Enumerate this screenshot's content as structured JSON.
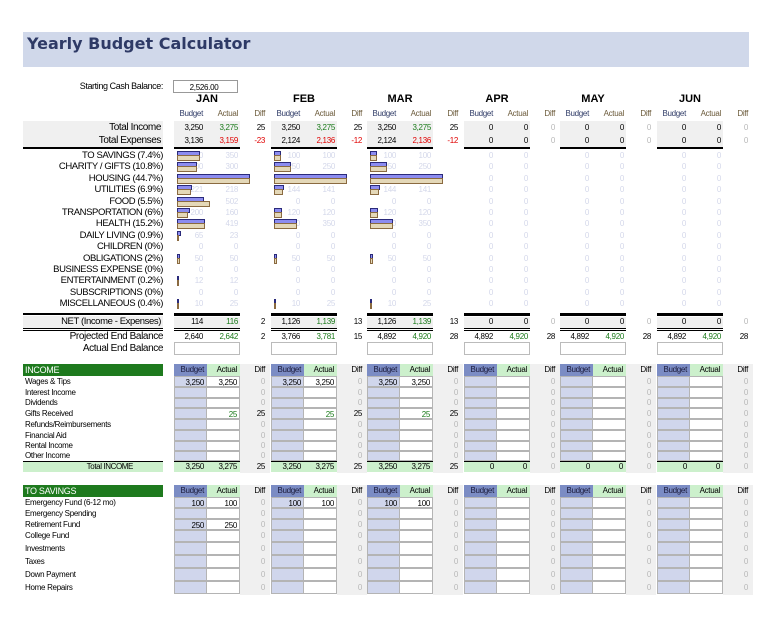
{
  "title": "Yearly Budget Calculator",
  "starting_cash": {
    "label": "Starting Cash Balance:",
    "value": "2,526.00"
  },
  "months": [
    "JAN",
    "FEB",
    "MAR",
    "APR",
    "MAY",
    "JUN"
  ],
  "col_headers": {
    "budget": "Budget",
    "actual": "Actual",
    "diff": "Diff"
  },
  "summary": {
    "total_income": {
      "label": "Total Income",
      "rows": [
        [
          "3,250",
          "3,275",
          "25"
        ],
        [
          "3,250",
          "3,275",
          "25"
        ],
        [
          "3,250",
          "3,275",
          "25"
        ],
        [
          "0",
          "0",
          "0"
        ],
        [
          "0",
          "0",
          "0"
        ],
        [
          "0",
          "0",
          "0"
        ]
      ]
    },
    "total_expenses": {
      "label": "Total Expenses",
      "rows": [
        [
          "3,136",
          "3,159",
          "-23"
        ],
        [
          "2,124",
          "2,136",
          "-12"
        ],
        [
          "2,124",
          "2,136",
          "-12"
        ],
        [
          "0",
          "0",
          "0"
        ],
        [
          "0",
          "0",
          "0"
        ],
        [
          "0",
          "0",
          "0"
        ]
      ]
    }
  },
  "categories": [
    {
      "label": "TO SAVINGS (7.4%)",
      "values": [
        [
          350,
          350
        ],
        [
          100,
          100
        ],
        [
          100,
          100
        ],
        [
          0,
          0
        ],
        [
          0,
          0
        ],
        [
          0,
          0
        ]
      ]
    },
    {
      "label": "CHARITY / GIFTS (10.8%)",
      "values": [
        [
          300,
          300
        ],
        [
          250,
          250
        ],
        [
          250,
          250
        ],
        [
          0,
          0
        ],
        [
          0,
          0
        ],
        [
          0,
          0
        ]
      ]
    },
    {
      "label": "HOUSING (44.7%)",
      "values": [
        [
          1100,
          1100
        ],
        [
          1100,
          1100
        ],
        [
          1100,
          1100
        ],
        [
          0,
          0
        ],
        [
          0,
          0
        ],
        [
          0,
          0
        ]
      ]
    },
    {
      "label": "UTILITIES (6.9%)",
      "values": [
        [
          221,
          218
        ],
        [
          144,
          141
        ],
        [
          144,
          141
        ],
        [
          0,
          0
        ],
        [
          0,
          0
        ],
        [
          0,
          0
        ]
      ]
    },
    {
      "label": "FOOD (5.5%)",
      "values": [
        [
          409,
          502
        ],
        [
          0,
          0
        ],
        [
          0,
          0
        ],
        [
          0,
          0
        ],
        [
          0,
          0
        ],
        [
          0,
          0
        ]
      ]
    },
    {
      "label": "TRANSPORTATION (6%)",
      "values": [
        [
          200,
          160
        ],
        [
          120,
          120
        ],
        [
          120,
          120
        ],
        [
          0,
          0
        ],
        [
          0,
          0
        ],
        [
          0,
          0
        ]
      ]
    },
    {
      "label": "HEALTH (15.2%)",
      "values": [
        [
          419,
          419
        ],
        [
          350,
          350
        ],
        [
          350,
          350
        ],
        [
          0,
          0
        ],
        [
          0,
          0
        ],
        [
          0,
          0
        ]
      ]
    },
    {
      "label": "DAILY LIVING (0.9%)",
      "values": [
        [
          65,
          23
        ],
        [
          0,
          0
        ],
        [
          0,
          0
        ],
        [
          0,
          0
        ],
        [
          0,
          0
        ],
        [
          0,
          0
        ]
      ]
    },
    {
      "label": "CHILDREN (0%)",
      "values": [
        [
          0,
          0
        ],
        [
          0,
          0
        ],
        [
          0,
          0
        ],
        [
          0,
          0
        ],
        [
          0,
          0
        ],
        [
          0,
          0
        ]
      ]
    },
    {
      "label": "OBLIGATIONS (2%)",
      "values": [
        [
          50,
          50
        ],
        [
          50,
          50
        ],
        [
          50,
          50
        ],
        [
          0,
          0
        ],
        [
          0,
          0
        ],
        [
          0,
          0
        ]
      ]
    },
    {
      "label": "BUSINESS EXPENSE (0%)",
      "values": [
        [
          0,
          0
        ],
        [
          0,
          0
        ],
        [
          0,
          0
        ],
        [
          0,
          0
        ],
        [
          0,
          0
        ],
        [
          0,
          0
        ]
      ]
    },
    {
      "label": "ENTERTAINMENT (0.2%)",
      "values": [
        [
          12,
          12
        ],
        [
          0,
          0
        ],
        [
          0,
          0
        ],
        [
          0,
          0
        ],
        [
          0,
          0
        ],
        [
          0,
          0
        ]
      ]
    },
    {
      "label": "SUBSCRIPTIONS (0%)",
      "values": [
        [
          0,
          0
        ],
        [
          0,
          0
        ],
        [
          0,
          0
        ],
        [
          0,
          0
        ],
        [
          0,
          0
        ],
        [
          0,
          0
        ]
      ]
    },
    {
      "label": "MISCELLANEOUS (0.4%)",
      "values": [
        [
          10,
          25
        ],
        [
          10,
          25
        ],
        [
          10,
          25
        ],
        [
          0,
          0
        ],
        [
          0,
          0
        ],
        [
          0,
          0
        ]
      ]
    }
  ],
  "net": {
    "label": "NET (Income - Expenses)",
    "rows": [
      [
        "114",
        "116",
        "2"
      ],
      [
        "1,126",
        "1,139",
        "13"
      ],
      [
        "1,126",
        "1,139",
        "13"
      ],
      [
        "0",
        "0",
        "0"
      ],
      [
        "0",
        "0",
        "0"
      ],
      [
        "0",
        "0",
        "0"
      ]
    ]
  },
  "projected": {
    "label": "Projected End Balance",
    "rows": [
      [
        "2,640",
        "2,642",
        "2"
      ],
      [
        "3,766",
        "3,781",
        "15"
      ],
      [
        "4,892",
        "4,920",
        "28"
      ],
      [
        "4,892",
        "4,920",
        "28"
      ],
      [
        "4,892",
        "4,920",
        "28"
      ],
      [
        "4,892",
        "4,920",
        "28"
      ]
    ]
  },
  "actual_end": {
    "label": "Actual End Balance"
  },
  "income": {
    "title": "INCOME",
    "total_label": "Total INCOME",
    "items": [
      {
        "label": "Wages & Tips",
        "values": [
          [
            "3,250",
            "3,250",
            "0"
          ],
          [
            "3,250",
            "3,250",
            "0"
          ],
          [
            "3,250",
            "3,250",
            "0"
          ],
          [
            "",
            "",
            "0"
          ],
          [
            "",
            "",
            "0"
          ],
          [
            "",
            "",
            "0"
          ]
        ]
      },
      {
        "label": "Interest Income",
        "values": [
          [
            "",
            "",
            "0"
          ],
          [
            "",
            "",
            "0"
          ],
          [
            "",
            "",
            "0"
          ],
          [
            "",
            "",
            "0"
          ],
          [
            "",
            "",
            "0"
          ],
          [
            "",
            "",
            "0"
          ]
        ]
      },
      {
        "label": "Dividends",
        "values": [
          [
            "",
            "",
            "0"
          ],
          [
            "",
            "",
            "0"
          ],
          [
            "",
            "",
            "0"
          ],
          [
            "",
            "",
            "0"
          ],
          [
            "",
            "",
            "0"
          ],
          [
            "",
            "",
            "0"
          ]
        ]
      },
      {
        "label": "Gifts Received",
        "values": [
          [
            "",
            "25",
            "25"
          ],
          [
            "",
            "25",
            "25"
          ],
          [
            "",
            "25",
            "25"
          ],
          [
            "",
            "",
            "0"
          ],
          [
            "",
            "",
            "0"
          ],
          [
            "",
            "",
            "0"
          ]
        ]
      },
      {
        "label": "Refunds/Reimbursements",
        "values": [
          [
            "",
            "",
            "0"
          ],
          [
            "",
            "",
            "0"
          ],
          [
            "",
            "",
            "0"
          ],
          [
            "",
            "",
            "0"
          ],
          [
            "",
            "",
            "0"
          ],
          [
            "",
            "",
            "0"
          ]
        ]
      },
      {
        "label": "Financial Aid",
        "values": [
          [
            "",
            "",
            "0"
          ],
          [
            "",
            "",
            "0"
          ],
          [
            "",
            "",
            "0"
          ],
          [
            "",
            "",
            "0"
          ],
          [
            "",
            "",
            "0"
          ],
          [
            "",
            "",
            "0"
          ]
        ]
      },
      {
        "label": "Rental Income",
        "values": [
          [
            "",
            "",
            "0"
          ],
          [
            "",
            "",
            "0"
          ],
          [
            "",
            "",
            "0"
          ],
          [
            "",
            "",
            "0"
          ],
          [
            "",
            "",
            "0"
          ],
          [
            "",
            "",
            "0"
          ]
        ]
      },
      {
        "label": "Other Income",
        "values": [
          [
            "",
            "",
            "0"
          ],
          [
            "",
            "",
            "0"
          ],
          [
            "",
            "",
            "0"
          ],
          [
            "",
            "",
            "0"
          ],
          [
            "",
            "",
            "0"
          ],
          [
            "",
            "",
            "0"
          ]
        ]
      }
    ],
    "totals": [
      [
        "3,250",
        "3,275",
        "25"
      ],
      [
        "3,250",
        "3,275",
        "25"
      ],
      [
        "3,250",
        "3,275",
        "25"
      ],
      [
        "0",
        "0",
        "0"
      ],
      [
        "0",
        "0",
        "0"
      ],
      [
        "0",
        "0",
        "0"
      ]
    ]
  },
  "savings": {
    "title": "TO SAVINGS",
    "items": [
      {
        "label": "Emergency Fund (6-12 mo)",
        "values": [
          [
            "100",
            "100",
            "0"
          ],
          [
            "100",
            "100",
            "0"
          ],
          [
            "100",
            "100",
            "0"
          ],
          [
            "",
            "",
            "0"
          ],
          [
            "",
            "",
            "0"
          ],
          [
            "",
            "",
            "0"
          ]
        ]
      },
      {
        "label": "Emergency Spending",
        "values": [
          [
            "",
            "",
            "0"
          ],
          [
            "",
            "",
            "0"
          ],
          [
            "",
            "",
            "0"
          ],
          [
            "",
            "",
            "0"
          ],
          [
            "",
            "",
            "0"
          ],
          [
            "",
            "",
            "0"
          ]
        ]
      },
      {
        "label": "Retirement Fund",
        "values": [
          [
            "250",
            "250",
            "0"
          ],
          [
            "",
            "",
            "0"
          ],
          [
            "",
            "",
            "0"
          ],
          [
            "",
            "",
            "0"
          ],
          [
            "",
            "",
            "0"
          ],
          [
            "",
            "",
            "0"
          ]
        ]
      },
      {
        "label": "College Fund",
        "values": [
          [
            "",
            "",
            "0"
          ],
          [
            "",
            "",
            "0"
          ],
          [
            "",
            "",
            "0"
          ],
          [
            "",
            "",
            "0"
          ],
          [
            "",
            "",
            "0"
          ],
          [
            "",
            "",
            "0"
          ]
        ]
      },
      {
        "label": "Investments",
        "values": [
          [
            "",
            "",
            "0"
          ],
          [
            "",
            "",
            "0"
          ],
          [
            "",
            "",
            "0"
          ],
          [
            "",
            "",
            "0"
          ],
          [
            "",
            "",
            "0"
          ],
          [
            "",
            "",
            "0"
          ]
        ]
      },
      {
        "label": "Taxes",
        "values": [
          [
            "",
            "",
            "0"
          ],
          [
            "",
            "",
            "0"
          ],
          [
            "",
            "",
            "0"
          ],
          [
            "",
            "",
            "0"
          ],
          [
            "",
            "",
            "0"
          ],
          [
            "",
            "",
            "0"
          ]
        ]
      },
      {
        "label": "Down Payment",
        "values": [
          [
            "",
            "",
            "0"
          ],
          [
            "",
            "",
            "0"
          ],
          [
            "",
            "",
            "0"
          ],
          [
            "",
            "",
            "0"
          ],
          [
            "",
            "",
            "0"
          ],
          [
            "",
            "",
            "0"
          ]
        ]
      },
      {
        "label": "Home Repairs",
        "values": [
          [
            "",
            "",
            "0"
          ],
          [
            "",
            "",
            "0"
          ],
          [
            "",
            "",
            "0"
          ],
          [
            "",
            "",
            "0"
          ],
          [
            "",
            "",
            "0"
          ],
          [
            "",
            "",
            "0"
          ]
        ]
      }
    ]
  },
  "colors": {
    "title_bg": "#d0d8ea",
    "section_green": "#1e7a1e",
    "budget_header": "#7b8cc4",
    "actual_header": "#ccf0cc",
    "budget_cell": "#d0d6ec"
  }
}
